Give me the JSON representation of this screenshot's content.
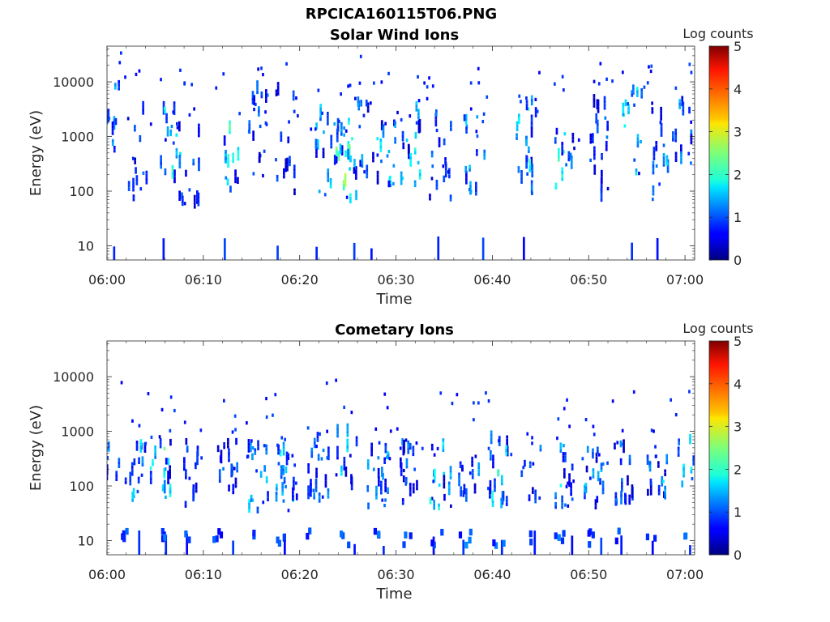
{
  "figure_title": "RPCICA160115T06.PNG",
  "chart_data": [
    {
      "type": "heatmap",
      "title": "Solar Wind Ions",
      "xlabel": "Time",
      "ylabel": "Energy (eV)",
      "x_tick_labels": [
        "06:00",
        "06:10",
        "06:20",
        "06:30",
        "06:40",
        "06:50",
        "07:00"
      ],
      "x_ticks_min": [
        0,
        10,
        20,
        30,
        40,
        50,
        60
      ],
      "xlim_min": [
        0,
        61
      ],
      "y_scale": "log",
      "ylim": [
        5.5,
        45000
      ],
      "y_tick_labels": [
        "10",
        "100",
        "1000",
        "10000"
      ],
      "y_ticks": [
        10,
        100,
        1000,
        10000
      ],
      "colorbar_label": "Log counts",
      "colorbar_ticks": [
        0,
        1,
        2,
        3,
        4,
        5
      ],
      "colorbar_range": [
        0,
        5
      ],
      "colormap": "jet",
      "value_scale": "log10 counts",
      "clusters": [
        {
          "t_min": 0.3,
          "e_center": 2500,
          "spread_dec": 0.7,
          "count": 10,
          "level_min": 0.3,
          "level_max": 1.9
        },
        {
          "t_min": 3.0,
          "e_center": 400,
          "spread_dec": 0.8,
          "count": 14,
          "level_min": 0.3,
          "level_max": 1.2
        },
        {
          "t_min": 6.5,
          "e_center": 400,
          "spread_dec": 1.0,
          "count": 20,
          "level_min": 0.3,
          "level_max": 2.2
        },
        {
          "t_min": 8.5,
          "e_center": 300,
          "spread_dec": 0.9,
          "count": 12,
          "level_min": 0.3,
          "level_max": 1.3
        },
        {
          "t_min": 12.5,
          "e_center": 350,
          "spread_dec": 0.6,
          "count": 12,
          "level_min": 0.5,
          "level_max": 2.3
        },
        {
          "t_min": 15.5,
          "e_center": 500,
          "spread_dec": 1.1,
          "count": 20,
          "level_min": 0.3,
          "level_max": 1.3
        },
        {
          "t_min": 18.5,
          "e_center": 800,
          "spread_dec": 1.0,
          "count": 14,
          "level_min": 0.3,
          "level_max": 1.2
        },
        {
          "t_min": 22.5,
          "e_center": 450,
          "spread_dec": 0.8,
          "count": 16,
          "level_min": 0.3,
          "level_max": 2.0
        },
        {
          "t_min": 24.8,
          "e_center": 300,
          "spread_dec": 0.8,
          "count": 26,
          "level_min": 0.5,
          "level_max": 2.5
        },
        {
          "t_min": 26.5,
          "e_center": 800,
          "spread_dec": 0.7,
          "count": 12,
          "level_min": 0.3,
          "level_max": 1.5
        },
        {
          "t_min": 29.0,
          "e_center": 450,
          "spread_dec": 0.6,
          "count": 18,
          "level_min": 0.4,
          "level_max": 1.9
        },
        {
          "t_min": 31.5,
          "e_center": 500,
          "spread_dec": 0.8,
          "count": 18,
          "level_min": 0.3,
          "level_max": 1.9
        },
        {
          "t_min": 34.5,
          "e_center": 400,
          "spread_dec": 0.8,
          "count": 18,
          "level_min": 0.3,
          "level_max": 1.3
        },
        {
          "t_min": 38.0,
          "e_center": 500,
          "spread_dec": 0.8,
          "count": 18,
          "level_min": 0.3,
          "level_max": 1.6
        },
        {
          "t_min": 43.5,
          "e_center": 600,
          "spread_dec": 0.9,
          "count": 22,
          "level_min": 0.3,
          "level_max": 2.2
        },
        {
          "t_min": 47.5,
          "e_center": 400,
          "spread_dec": 0.6,
          "count": 14,
          "level_min": 0.3,
          "level_max": 2.2
        },
        {
          "t_min": 51.0,
          "e_center": 600,
          "spread_dec": 1.0,
          "count": 20,
          "level_min": 0.3,
          "level_max": 1.3
        },
        {
          "t_min": 54.5,
          "e_center": 1000,
          "spread_dec": 0.8,
          "count": 14,
          "level_min": 0.3,
          "level_max": 2.0
        },
        {
          "t_min": 57.5,
          "e_center": 500,
          "spread_dec": 0.9,
          "count": 16,
          "level_min": 0.3,
          "level_max": 1.6
        },
        {
          "t_min": 59.5,
          "e_center": 800,
          "spread_dec": 0.8,
          "count": 14,
          "level_min": 0.3,
          "level_max": 1.5
        }
      ]
    },
    {
      "type": "heatmap",
      "title": "Cometary Ions",
      "xlabel": "Time",
      "ylabel": "Energy (eV)",
      "x_tick_labels": [
        "06:00",
        "06:10",
        "06:20",
        "06:30",
        "06:40",
        "06:50",
        "07:00"
      ],
      "x_ticks_min": [
        0,
        10,
        20,
        30,
        40,
        50,
        60
      ],
      "xlim_min": [
        0,
        61
      ],
      "y_scale": "log",
      "ylim": [
        5.5,
        45000
      ],
      "y_tick_labels": [
        "10",
        "100",
        "1000",
        "10000"
      ],
      "y_ticks": [
        10,
        100,
        1000,
        10000
      ],
      "colorbar_label": "Log counts",
      "colorbar_ticks": [
        0,
        1,
        2,
        3,
        4,
        5
      ],
      "colorbar_range": [
        0,
        5
      ],
      "colormap": "jet",
      "value_scale": "log10 counts",
      "clusters": [
        {
          "t_min": 0.3,
          "e_center": 250,
          "spread_dec": 0.4,
          "count": 8,
          "level_min": 0.3,
          "level_max": 1.5
        },
        {
          "t_min": 2.8,
          "e_center": 150,
          "spread_dec": 0.6,
          "count": 16,
          "level_min": 0.3,
          "level_max": 1.8
        },
        {
          "t_min": 5.5,
          "e_center": 200,
          "spread_dec": 0.6,
          "count": 18,
          "level_min": 0.3,
          "level_max": 2.2
        },
        {
          "t_min": 9.0,
          "e_center": 150,
          "spread_dec": 0.6,
          "count": 12,
          "level_min": 0.3,
          "level_max": 1.2
        },
        {
          "t_min": 12.5,
          "e_center": 150,
          "spread_dec": 0.7,
          "count": 16,
          "level_min": 0.3,
          "level_max": 1.3
        },
        {
          "t_min": 15.5,
          "e_center": 120,
          "spread_dec": 0.6,
          "count": 20,
          "level_min": 0.5,
          "level_max": 1.8
        },
        {
          "t_min": 18.5,
          "e_center": 130,
          "spread_dec": 0.6,
          "count": 22,
          "level_min": 0.5,
          "level_max": 1.8
        },
        {
          "t_min": 21.8,
          "e_center": 180,
          "spread_dec": 0.6,
          "count": 20,
          "level_min": 0.4,
          "level_max": 1.4
        },
        {
          "t_min": 24.8,
          "e_center": 250,
          "spread_dec": 0.5,
          "count": 12,
          "level_min": 0.4,
          "level_max": 1.7
        },
        {
          "t_min": 28.0,
          "e_center": 130,
          "spread_dec": 0.6,
          "count": 22,
          "level_min": 0.4,
          "level_max": 1.6
        },
        {
          "t_min": 31.3,
          "e_center": 150,
          "spread_dec": 0.6,
          "count": 18,
          "level_min": 0.3,
          "level_max": 1.3
        },
        {
          "t_min": 34.5,
          "e_center": 120,
          "spread_dec": 0.6,
          "count": 16,
          "level_min": 0.3,
          "level_max": 2.0
        },
        {
          "t_min": 37.5,
          "e_center": 120,
          "spread_dec": 0.5,
          "count": 14,
          "level_min": 0.3,
          "level_max": 1.5
        },
        {
          "t_min": 40.5,
          "e_center": 150,
          "spread_dec": 0.6,
          "count": 20,
          "level_min": 0.3,
          "level_max": 2.0
        },
        {
          "t_min": 44.0,
          "e_center": 150,
          "spread_dec": 0.5,
          "count": 10,
          "level_min": 0.3,
          "level_max": 1.2
        },
        {
          "t_min": 47.5,
          "e_center": 150,
          "spread_dec": 0.6,
          "count": 18,
          "level_min": 0.3,
          "level_max": 1.8
        },
        {
          "t_min": 50.5,
          "e_center": 120,
          "spread_dec": 0.6,
          "count": 20,
          "level_min": 0.3,
          "level_max": 1.6
        },
        {
          "t_min": 53.5,
          "e_center": 150,
          "spread_dec": 0.6,
          "count": 16,
          "level_min": 0.3,
          "level_max": 1.3
        },
        {
          "t_min": 57.0,
          "e_center": 100,
          "spread_dec": 0.6,
          "count": 16,
          "level_min": 0.3,
          "level_max": 1.6
        },
        {
          "t_min": 60.3,
          "e_center": 200,
          "spread_dec": 0.5,
          "count": 14,
          "level_min": 0.3,
          "level_max": 1.8
        }
      ],
      "low_energy_band": {
        "e_center": 10,
        "times_min": [
          1.8,
          5.5,
          8.5,
          11.5,
          15.0,
          18.0,
          21.0,
          24.5,
          28.0,
          31.0,
          34.0,
          37.0,
          40.5,
          43.5,
          47.0,
          50.0,
          53.0,
          56.5,
          59.5
        ]
      }
    }
  ]
}
